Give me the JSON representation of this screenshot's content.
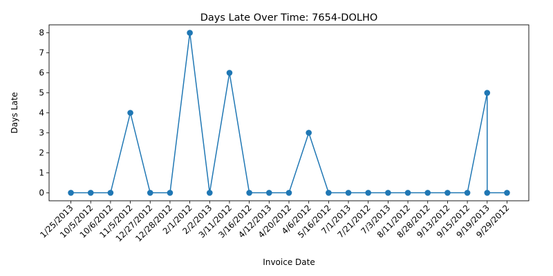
{
  "chart_data": {
    "type": "line",
    "title": "Days Late Over Time: 7654-DOLHO",
    "xlabel": "Invoice Date",
    "ylabel": "Days Late",
    "categories": [
      "1/25/2013",
      "10/5/2012",
      "10/6/2012",
      "11/5/2012",
      "12/27/2012",
      "12/28/2012",
      "2/1/2012",
      "2/2/2013",
      "3/11/2012",
      "3/16/2012",
      "4/12/2013",
      "4/20/2012",
      "4/6/2012",
      "5/16/2012",
      "7/1/2013",
      "7/21/2012",
      "7/3/2013",
      "8/11/2012",
      "8/28/2012",
      "9/13/2012",
      "9/15/2012",
      "9/19/2013",
      "9/29/2012"
    ],
    "points": [
      {
        "x": "1/25/2013",
        "y": 0
      },
      {
        "x": "10/5/2012",
        "y": 0
      },
      {
        "x": "10/6/2012",
        "y": 0
      },
      {
        "x": "11/5/2012",
        "y": 4
      },
      {
        "x": "12/27/2012",
        "y": 0
      },
      {
        "x": "12/28/2012",
        "y": 0
      },
      {
        "x": "2/1/2012",
        "y": 8
      },
      {
        "x": "2/2/2013",
        "y": 0
      },
      {
        "x": "3/11/2012",
        "y": 6
      },
      {
        "x": "3/16/2012",
        "y": 0
      },
      {
        "x": "4/12/2013",
        "y": 0
      },
      {
        "x": "4/20/2012",
        "y": 0
      },
      {
        "x": "4/6/2012",
        "y": 3
      },
      {
        "x": "5/16/2012",
        "y": 0
      },
      {
        "x": "7/1/2013",
        "y": 0
      },
      {
        "x": "7/21/2012",
        "y": 0
      },
      {
        "x": "7/3/2013",
        "y": 0
      },
      {
        "x": "8/11/2012",
        "y": 0
      },
      {
        "x": "8/28/2012",
        "y": 0
      },
      {
        "x": "9/13/2012",
        "y": 0
      },
      {
        "x": "9/15/2012",
        "y": 0
      },
      {
        "x": "9/19/2013",
        "y": 5
      },
      {
        "x": "9/19/2013",
        "y": 0
      },
      {
        "x": "9/29/2012",
        "y": 0
      }
    ],
    "yticks": [
      "0",
      "1",
      "2",
      "3",
      "4",
      "5",
      "6",
      "7",
      "8"
    ],
    "ylim": [
      -0.4,
      8.4
    ],
    "grid": false,
    "legend": "none",
    "colors": {
      "line": "#1f77b4",
      "marker": "#1f77b4"
    }
  }
}
